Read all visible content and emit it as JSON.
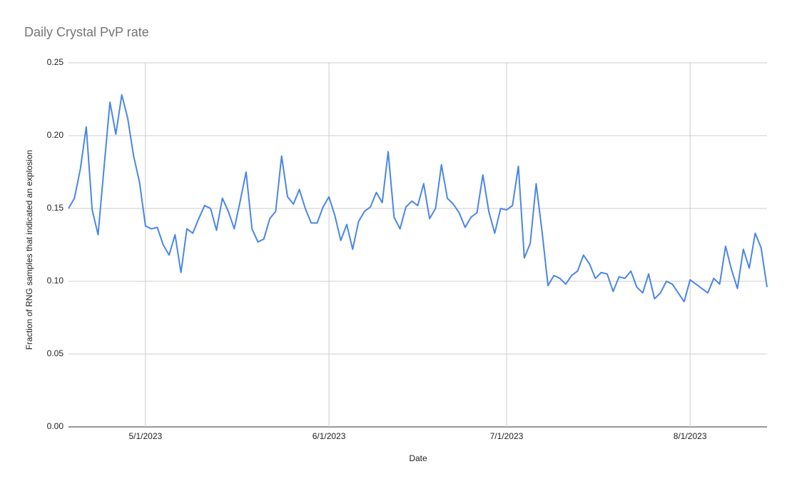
{
  "chart_data": {
    "type": "line",
    "title": "Daily Crystal PvP rate",
    "x_label": "Date",
    "y_label": "Fraction of RNG samples that indicated an explosion",
    "color": "#4a86e8",
    "grid": true,
    "x": [
      "4/18/2023",
      "4/19/2023",
      "4/20/2023",
      "4/21/2023",
      "4/22/2023",
      "4/23/2023",
      "4/24/2023",
      "4/25/2023",
      "4/26/2023",
      "4/27/2023",
      "4/28/2023",
      "4/29/2023",
      "4/30/2023",
      "5/1/2023",
      "5/2/2023",
      "5/3/2023",
      "5/4/2023",
      "5/5/2023",
      "5/6/2023",
      "5/7/2023",
      "5/8/2023",
      "5/9/2023",
      "5/10/2023",
      "5/11/2023",
      "5/12/2023",
      "5/13/2023",
      "5/14/2023",
      "5/15/2023",
      "5/16/2023",
      "5/17/2023",
      "5/18/2023",
      "5/19/2023",
      "5/20/2023",
      "5/21/2023",
      "5/22/2023",
      "5/23/2023",
      "5/24/2023",
      "5/25/2023",
      "5/26/2023",
      "5/27/2023",
      "5/28/2023",
      "5/29/2023",
      "5/30/2023",
      "5/31/2023",
      "6/1/2023",
      "6/2/2023",
      "6/3/2023",
      "6/4/2023",
      "6/5/2023",
      "6/6/2023",
      "6/7/2023",
      "6/8/2023",
      "6/9/2023",
      "6/10/2023",
      "6/11/2023",
      "6/12/2023",
      "6/13/2023",
      "6/14/2023",
      "6/15/2023",
      "6/16/2023",
      "6/17/2023",
      "6/18/2023",
      "6/19/2023",
      "6/20/2023",
      "6/21/2023",
      "6/22/2023",
      "6/23/2023",
      "6/24/2023",
      "6/25/2023",
      "6/26/2023",
      "6/27/2023",
      "6/28/2023",
      "6/29/2023",
      "6/30/2023",
      "7/1/2023",
      "7/2/2023",
      "7/3/2023",
      "7/4/2023",
      "7/5/2023",
      "7/6/2023",
      "7/7/2023",
      "7/8/2023",
      "7/9/2023",
      "7/10/2023",
      "7/11/2023",
      "7/12/2023",
      "7/13/2023",
      "7/14/2023",
      "7/15/2023",
      "7/16/2023",
      "7/17/2023",
      "7/18/2023",
      "7/19/2023",
      "7/20/2023",
      "7/21/2023",
      "7/22/2023",
      "7/23/2023",
      "7/24/2023",
      "7/25/2023",
      "7/26/2023",
      "7/27/2023",
      "7/28/2023",
      "7/29/2023",
      "7/30/2023",
      "7/31/2023",
      "8/1/2023",
      "8/2/2023",
      "8/3/2023",
      "8/4/2023",
      "8/5/2023",
      "8/6/2023",
      "8/7/2023",
      "8/8/2023",
      "8/9/2023",
      "8/10/2023",
      "8/11/2023",
      "8/12/2023",
      "8/13/2023",
      "8/14/2023"
    ],
    "values": [
      0.15,
      0.157,
      0.177,
      0.206,
      0.149,
      0.132,
      0.178,
      0.223,
      0.201,
      0.228,
      0.212,
      0.186,
      0.168,
      0.138,
      0.136,
      0.137,
      0.125,
      0.118,
      0.132,
      0.106,
      0.136,
      0.133,
      0.143,
      0.152,
      0.15,
      0.135,
      0.157,
      0.148,
      0.136,
      0.155,
      0.175,
      0.136,
      0.127,
      0.129,
      0.143,
      0.148,
      0.186,
      0.158,
      0.153,
      0.163,
      0.15,
      0.14,
      0.14,
      0.151,
      0.158,
      0.145,
      0.128,
      0.139,
      0.122,
      0.141,
      0.148,
      0.151,
      0.161,
      0.154,
      0.189,
      0.144,
      0.136,
      0.151,
      0.155,
      0.152,
      0.167,
      0.143,
      0.15,
      0.18,
      0.157,
      0.153,
      0.147,
      0.137,
      0.144,
      0.147,
      0.173,
      0.148,
      0.133,
      0.15,
      0.149,
      0.152,
      0.179,
      0.116,
      0.126,
      0.167,
      0.134,
      0.097,
      0.104,
      0.102,
      0.098,
      0.104,
      0.107,
      0.118,
      0.112,
      0.102,
      0.106,
      0.105,
      0.093,
      0.103,
      0.102,
      0.107,
      0.096,
      0.092,
      0.105,
      0.088,
      0.092,
      0.1,
      0.098,
      0.092,
      0.086,
      0.101,
      0.098,
      0.095,
      0.092,
      0.102,
      0.098,
      0.124,
      0.108,
      0.095,
      0.122,
      0.109,
      0.133,
      0.123,
      0.096
    ],
    "xlim": [
      "4/18/2023",
      "8/14/2023"
    ],
    "xticks": [
      "5/1/2023",
      "6/1/2023",
      "7/1/2023",
      "8/1/2023"
    ],
    "ylim": [
      0,
      0.25
    ],
    "yticks": [
      {
        "value": 0,
        "label": "0.00"
      },
      {
        "value": 0.05,
        "label": "0.05"
      },
      {
        "value": 0.1,
        "label": "0.10"
      },
      {
        "value": 0.15,
        "label": "0.15"
      },
      {
        "value": 0.2,
        "label": "0.20"
      },
      {
        "value": 0.25,
        "label": "0.25"
      }
    ]
  }
}
